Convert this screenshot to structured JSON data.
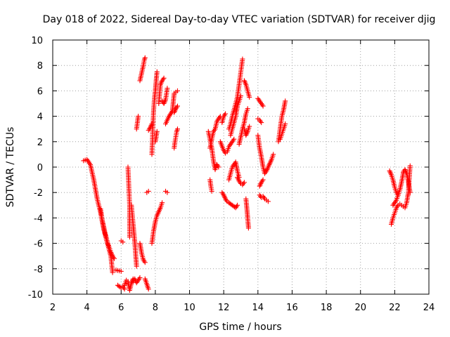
{
  "chart_data": {
    "type": "scatter",
    "title": "Day 018 of 2022, Sidereal Day-to-day VTEC variation (SDTVAR) for receiver djig",
    "xlabel": "GPS time / hours",
    "ylabel": "SDTVAR / TECUs",
    "xlim": [
      2,
      24
    ],
    "ylim": [
      -10,
      10
    ],
    "xticks": [
      2,
      4,
      6,
      8,
      10,
      12,
      14,
      16,
      18,
      20,
      22,
      24
    ],
    "yticks": [
      -10,
      -8,
      -6,
      -4,
      -2,
      0,
      2,
      4,
      6,
      8,
      10
    ],
    "grid": true,
    "marker": "+",
    "marker_color": "#ff0000",
    "tracks": [
      {
        "x": [
          3.8,
          4.0,
          4.2,
          4.4,
          4.6,
          4.8,
          5.0,
          5.2,
          5.4,
          5.5
        ],
        "y": [
          0.5,
          0.6,
          0.2,
          -1.0,
          -2.5,
          -3.6,
          -5.0,
          -6.0,
          -7.0,
          -8.3
        ]
      },
      {
        "x": [
          4.8,
          4.9,
          5.0,
          5.1,
          5.2,
          5.3,
          5.4,
          5.5,
          5.6
        ],
        "y": [
          -3.3,
          -4.2,
          -4.8,
          -5.4,
          -5.9,
          -6.3,
          -6.7,
          -7.0,
          -7.2
        ]
      },
      {
        "x": [
          5.7,
          6.0
        ],
        "y": [
          -8.1,
          -8.2
        ]
      },
      {
        "x": [
          5.8,
          6.0,
          6.1,
          6.2
        ],
        "y": [
          -9.3,
          -9.5,
          -9.4,
          -9.6
        ]
      },
      {
        "x": [
          6.2,
          6.3,
          6.4,
          6.5,
          6.6,
          6.7
        ],
        "y": [
          -9.3,
          -8.9,
          -9.0,
          -9.7,
          -9.1,
          -8.8
        ]
      },
      {
        "x": [
          6.0,
          6.1
        ],
        "y": [
          -5.8,
          -5.9
        ]
      },
      {
        "x": [
          6.4,
          6.45,
          6.5,
          6.5,
          6.5
        ],
        "y": [
          0.0,
          -1.5,
          -3.0,
          -4.5,
          -5.5
        ]
      },
      {
        "x": [
          6.6,
          6.7,
          6.8,
          6.9
        ],
        "y": [
          -3.0,
          -4.5,
          -5.9,
          -7.8
        ]
      },
      {
        "x": [
          6.7,
          6.8,
          6.9,
          7.0,
          7.1
        ],
        "y": [
          -9.0,
          -8.8,
          -9.1,
          -8.9,
          -8.7
        ]
      },
      {
        "x": [
          6.9,
          7.0
        ],
        "y": [
          3.0,
          4.0
        ]
      },
      {
        "x": [
          7.1,
          7.2,
          7.3,
          7.4
        ],
        "y": [
          -6.0,
          -6.8,
          -7.3,
          -7.5
        ]
      },
      {
        "x": [
          7.1,
          7.2,
          7.3,
          7.35,
          7.4
        ],
        "y": [
          6.8,
          7.4,
          8.0,
          8.4,
          8.6
        ]
      },
      {
        "x": [
          7.5,
          7.6
        ],
        "y": [
          -2.0,
          -1.9
        ]
      },
      {
        "x": [
          7.4,
          7.6
        ],
        "y": [
          -8.8,
          -9.6
        ]
      },
      {
        "x": [
          7.6,
          7.7,
          7.8
        ],
        "y": [
          2.9,
          3.1,
          3.4
        ]
      },
      {
        "x": [
          7.8,
          7.9,
          8.0,
          8.1,
          8.2,
          8.3,
          8.4
        ],
        "y": [
          -6.0,
          -5.0,
          -4.3,
          -3.8,
          -3.5,
          -3.2,
          -2.8
        ]
      },
      {
        "x": [
          7.8,
          7.85,
          7.9,
          7.95,
          8.0,
          8.05,
          8.1
        ],
        "y": [
          1.0,
          3.0,
          4.5,
          5.4,
          6.0,
          6.8,
          7.5
        ]
      },
      {
        "x": [
          8.0,
          8.1
        ],
        "y": [
          2.0,
          2.8
        ]
      },
      {
        "x": [
          8.2,
          8.3,
          8.4,
          8.5
        ],
        "y": [
          5.0,
          6.5,
          6.8,
          7.0
        ]
      },
      {
        "x": [
          8.4,
          8.5,
          8.6,
          8.7
        ],
        "y": [
          5.2,
          5.0,
          5.3,
          6.2
        ]
      },
      {
        "x": [
          8.6,
          8.7
        ],
        "y": [
          -1.9,
          -2.0
        ]
      },
      {
        "x": [
          8.6,
          8.8,
          9.0,
          9.1,
          9.2,
          9.3
        ],
        "y": [
          3.4,
          4.0,
          4.4,
          5.8,
          5.9,
          6.0
        ]
      },
      {
        "x": [
          8.9,
          9.0,
          9.1,
          9.2,
          9.3
        ],
        "y": [
          4.2,
          4.4,
          4.3,
          4.6,
          4.8
        ]
      },
      {
        "x": [
          9.1,
          9.15,
          9.2,
          9.25,
          9.3
        ],
        "y": [
          1.5,
          2.0,
          2.4,
          2.8,
          3.0
        ]
      },
      {
        "x": [
          11.1,
          11.2,
          11.3,
          11.4,
          11.5,
          11.6,
          11.7
        ],
        "y": [
          2.8,
          2.2,
          1.5,
          0.5,
          -0.2,
          0.2,
          0.0
        ]
      },
      {
        "x": [
          11.2,
          11.3,
          11.4,
          11.5,
          11.6,
          11.7,
          11.8
        ],
        "y": [
          1.5,
          2.2,
          2.8,
          3.0,
          3.6,
          3.8,
          4.0
        ]
      },
      {
        "x": [
          11.2,
          11.25,
          11.3
        ],
        "y": [
          -1.0,
          -1.5,
          -1.9
        ]
      },
      {
        "x": [
          11.9,
          12.0,
          12.1
        ],
        "y": [
          3.5,
          4.0,
          4.2
        ]
      },
      {
        "x": [
          11.9,
          12.0,
          12.1,
          12.2,
          12.3,
          12.5,
          12.7,
          12.8
        ],
        "y": [
          -2.0,
          -2.2,
          -2.5,
          -2.7,
          -2.8,
          -3.0,
          -3.2,
          -3.0
        ]
      },
      {
        "x": [
          11.8,
          12.0,
          12.1,
          12.2,
          12.3,
          12.4,
          12.6
        ],
        "y": [
          2.0,
          1.3,
          1.1,
          1.2,
          1.6,
          1.8,
          2.2
        ]
      },
      {
        "x": [
          12.3,
          12.4,
          12.5,
          12.6,
          12.7,
          12.8,
          12.9
        ],
        "y": [
          -1.0,
          -0.5,
          0.0,
          0.2,
          0.4,
          -0.3,
          -0.8
        ]
      },
      {
        "x": [
          12.3,
          12.4,
          12.5,
          12.6,
          12.7,
          12.8,
          12.9,
          13.0,
          13.1
        ],
        "y": [
          3.0,
          3.4,
          4.0,
          4.5,
          5.0,
          5.5,
          6.5,
          7.5,
          8.5
        ]
      },
      {
        "x": [
          12.4,
          12.5,
          12.6,
          12.7,
          12.8,
          12.9,
          13.0
        ],
        "y": [
          2.5,
          3.0,
          3.5,
          4.0,
          4.8,
          5.2,
          5.6
        ]
      },
      {
        "x": [
          12.8,
          12.9,
          13.0,
          13.1,
          13.2
        ],
        "y": [
          -0.8,
          -1.1,
          -1.3,
          -1.4,
          -1.2
        ]
      },
      {
        "x": [
          12.9,
          13.0,
          13.1,
          13.2,
          13.3,
          13.4
        ],
        "y": [
          1.8,
          2.4,
          3.0,
          3.5,
          4.2,
          4.6
        ]
      },
      {
        "x": [
          13.2,
          13.3,
          13.4,
          13.5
        ],
        "y": [
          6.8,
          6.5,
          6.0,
          5.5
        ]
      },
      {
        "x": [
          13.3,
          13.35,
          13.4,
          13.45
        ],
        "y": [
          -2.5,
          -3.2,
          -4.0,
          -4.8
        ]
      },
      {
        "x": [
          13.2,
          13.3,
          13.4,
          13.5
        ],
        "y": [
          3.0,
          2.5,
          2.8,
          3.2
        ]
      },
      {
        "x": [
          14.0,
          14.1,
          14.2,
          14.3
        ],
        "y": [
          5.4,
          5.2,
          5.0,
          4.8
        ]
      },
      {
        "x": [
          14.0,
          14.1,
          14.2
        ],
        "y": [
          3.8,
          3.7,
          3.5
        ]
      },
      {
        "x": [
          14.1,
          14.2,
          14.3,
          14.4,
          14.5,
          14.6
        ],
        "y": [
          -2.2,
          -2.4,
          -2.3,
          -2.5,
          -2.6,
          -2.7
        ]
      },
      {
        "x": [
          14.0,
          14.1,
          14.2,
          14.3,
          14.4,
          14.5,
          14.6,
          14.7,
          14.8,
          14.9
        ],
        "y": [
          2.5,
          1.5,
          0.8,
          0.0,
          -0.5,
          -0.3,
          0.0,
          0.3,
          0.6,
          1.0
        ]
      },
      {
        "x": [
          14.1,
          14.2,
          14.3
        ],
        "y": [
          -1.5,
          -1.2,
          -1.0
        ]
      },
      {
        "x": [
          15.2,
          15.3,
          15.4,
          15.5,
          15.6
        ],
        "y": [
          2.0,
          3.0,
          4.0,
          4.5,
          5.2
        ]
      },
      {
        "x": [
          15.3,
          15.4,
          15.5,
          15.6
        ],
        "y": [
          2.2,
          2.6,
          3.0,
          3.4
        ]
      },
      {
        "x": [
          21.7,
          21.8,
          21.9,
          22.0,
          22.1,
          22.2
        ],
        "y": [
          -0.3,
          -0.6,
          -1.0,
          -1.6,
          -2.0,
          -2.2
        ]
      },
      {
        "x": [
          21.8,
          21.9,
          22.0,
          22.1,
          22.2,
          22.3,
          22.4,
          22.5
        ],
        "y": [
          -4.5,
          -4.0,
          -3.6,
          -3.2,
          -3.0,
          -2.9,
          -3.0,
          -3.1
        ]
      },
      {
        "x": [
          21.9,
          22.0,
          22.1,
          22.2,
          22.3,
          22.4,
          22.5
        ],
        "y": [
          -3.0,
          -2.8,
          -2.6,
          -2.2,
          -1.8,
          -1.2,
          -0.5
        ]
      },
      {
        "x": [
          22.5,
          22.6,
          22.7,
          22.8,
          22.9
        ],
        "y": [
          -0.4,
          -0.2,
          -0.5,
          -1.2,
          -2.0
        ]
      },
      {
        "x": [
          22.6,
          22.7,
          22.8,
          22.9
        ],
        "y": [
          -3.2,
          -2.8,
          -2.0,
          0.1
        ]
      }
    ]
  }
}
